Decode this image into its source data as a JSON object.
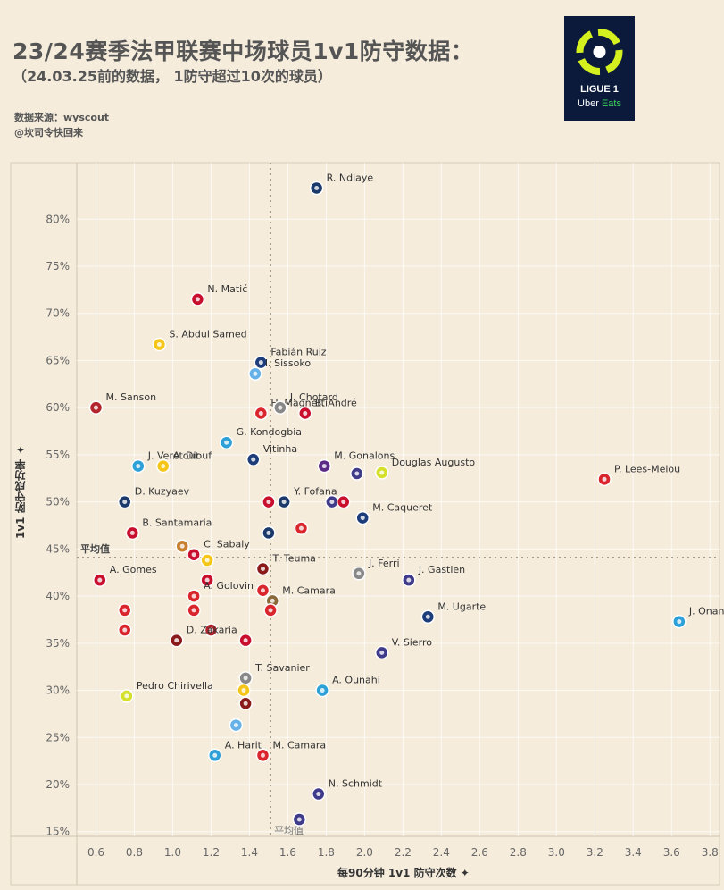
{
  "header": {
    "title": "23/24赛季法甲联赛中场球员1v1防守数据：",
    "subtitle": "（24.03.25前的数据，                1防守超过10次的球员）",
    "source": "数据来源：wyscout",
    "author": "@坎司令快回来"
  },
  "logo": {
    "line1": "LIGUE 1",
    "line2a": "Uber ",
    "line2b": "Eats"
  },
  "axis_labels": {
    "y": "1v1 防守成功率 ✦",
    "x": "每90分钟 1v1 防守次数 ✦"
  },
  "chart_data": {
    "type": "scatter",
    "title": "23/24赛季法甲联赛中场球员1v1防守数据：",
    "xlabel": "每90分钟 1v1 防守次数",
    "ylabel": "1v1 防守成功率",
    "xlim": [
      0.5,
      3.85
    ],
    "ylim": [
      14.5,
      86
    ],
    "x_ticks": [
      "0.6",
      "0.8",
      "1.0",
      "1.2",
      "1.4",
      "1.6",
      "1.8",
      "2.0",
      "2.2",
      "2.4",
      "2.6",
      "2.8",
      "3.0",
      "3.2",
      "3.4",
      "3.6",
      "3.8"
    ],
    "x_tick_values": [
      0.6,
      0.8,
      1.0,
      1.2,
      1.4,
      1.6,
      1.8,
      2.0,
      2.2,
      2.4,
      2.6,
      2.8,
      3.0,
      3.2,
      3.4,
      3.6,
      3.8
    ],
    "y_ticks": [
      "15%",
      "20%",
      "25%",
      "30%",
      "35%",
      "40%",
      "45%",
      "50%",
      "55%",
      "60%",
      "65%",
      "70%",
      "75%",
      "80%"
    ],
    "y_tick_values": [
      15,
      20,
      25,
      30,
      35,
      40,
      45,
      50,
      55,
      60,
      65,
      70,
      75,
      80
    ],
    "avg_x": 1.51,
    "avg_y": 44.1,
    "avg_label": "平均值",
    "grid": true,
    "points": [
      {
        "name": "R. Ndiaye",
        "x": 1.75,
        "y": 83.3,
        "color": "#1b3a6b"
      },
      {
        "name": "N. Matić",
        "x": 1.13,
        "y": 71.5,
        "color": "#c8102e"
      },
      {
        "name": "S. Abdul Samed",
        "x": 0.93,
        "y": 66.7,
        "color": "#f5c518"
      },
      {
        "name": "Fabián Ruiz",
        "x": 1.46,
        "y": 64.8,
        "color": "#1d3c7a"
      },
      {
        "name": "I. Sissoko",
        "x": 1.43,
        "y": 63.6,
        "color": "#66b2e8"
      },
      {
        "name": "M. Sanson",
        "x": 0.6,
        "y": 60.0,
        "color": "#b3262d"
      },
      {
        "name": "H. Magnetti",
        "x": 1.46,
        "y": 59.4,
        "color": "#d9262d"
      },
      {
        "name": "J. Chotard",
        "x": 1.56,
        "y": 60.0,
        "color": "#888888"
      },
      {
        "name": "B. André",
        "x": 1.69,
        "y": 59.4,
        "color": "#c8102e"
      },
      {
        "name": "G. Kondogbia",
        "x": 1.28,
        "y": 56.3,
        "color": "#2ea0d8"
      },
      {
        "name": "A. Diouf",
        "x": 0.95,
        "y": 53.8,
        "color": "#f5c518"
      },
      {
        "name": "Vitinha",
        "x": 1.42,
        "y": 54.5,
        "color": "#1d3c7a"
      },
      {
        "name": "M. Gonalons",
        "x": 1.79,
        "y": 53.8,
        "color": "#5b2a86"
      },
      {
        "name": "",
        "x": 1.96,
        "y": 53.0,
        "color": "#3f3a8a"
      },
      {
        "name": "Douglas Augusto",
        "x": 2.09,
        "y": 53.1,
        "color": "#d4e02a"
      },
      {
        "name": "P. Lees-Melou",
        "x": 3.25,
        "y": 52.4,
        "color": "#d9262d"
      },
      {
        "name": "J. Veretout",
        "x": 0.82,
        "y": 53.8,
        "color": "#2ea0d8"
      },
      {
        "name": "D. Kuzyaev",
        "x": 0.75,
        "y": 50.0,
        "color": "#1b3a6b"
      },
      {
        "name": "Y. Fofana",
        "x": 1.58,
        "y": 50.0,
        "color": "#1b3a6b"
      },
      {
        "name": "",
        "x": 1.5,
        "y": 50.0,
        "color": "#c8102e"
      },
      {
        "name": "",
        "x": 1.83,
        "y": 50.0,
        "color": "#3f3a8a"
      },
      {
        "name": "",
        "x": 1.89,
        "y": 50.0,
        "color": "#c8102e"
      },
      {
        "name": "M. Caqueret",
        "x": 1.99,
        "y": 48.3,
        "color": "#1d3c7a"
      },
      {
        "name": "",
        "x": 1.67,
        "y": 47.2,
        "color": "#d9262d"
      },
      {
        "name": "B. Santamaria",
        "x": 0.79,
        "y": 46.7,
        "color": "#c8102e"
      },
      {
        "name": "",
        "x": 1.5,
        "y": 46.7,
        "color": "#1b3a6b"
      },
      {
        "name": "",
        "x": 1.05,
        "y": 45.3,
        "color": "#c8802e"
      },
      {
        "name": "C. Sabaly",
        "x": 1.11,
        "y": 44.4,
        "color": "#c8102e"
      },
      {
        "name": "",
        "x": 1.18,
        "y": 43.8,
        "color": "#f5c518"
      },
      {
        "name": "A. Gomes",
        "x": 0.62,
        "y": 41.7,
        "color": "#c8102e"
      },
      {
        "name": "T. Teuma",
        "x": 1.47,
        "y": 42.9,
        "color": "#8a1a1a"
      },
      {
        "name": "J. Ferri",
        "x": 1.97,
        "y": 42.4,
        "color": "#888888"
      },
      {
        "name": "J. Gastien",
        "x": 2.23,
        "y": 41.7,
        "color": "#3f3a8a"
      },
      {
        "name": "",
        "x": 1.18,
        "y": 41.7,
        "color": "#c8102e"
      },
      {
        "name": "A. Golovin",
        "x": 1.11,
        "y": 40.0,
        "color": "#d9262d"
      },
      {
        "name": "",
        "x": 1.47,
        "y": 40.6,
        "color": "#d9262d"
      },
      {
        "name": "M. Camara",
        "x": 1.52,
        "y": 39.5,
        "color": "#8a6a3a"
      },
      {
        "name": "",
        "x": 1.51,
        "y": 38.5,
        "color": "#d9262d"
      },
      {
        "name": "",
        "x": 0.75,
        "y": 38.5,
        "color": "#d9262d"
      },
      {
        "name": "",
        "x": 1.11,
        "y": 38.5,
        "color": "#d9262d"
      },
      {
        "name": "J. Onana",
        "x": 3.64,
        "y": 37.3,
        "color": "#2ea0d8"
      },
      {
        "name": "M. Ugarte",
        "x": 2.33,
        "y": 37.8,
        "color": "#1d3c7a"
      },
      {
        "name": "",
        "x": 0.75,
        "y": 36.4,
        "color": "#d9262d"
      },
      {
        "name": "",
        "x": 1.2,
        "y": 36.4,
        "color": "#b3262d"
      },
      {
        "name": "D. Zakaria",
        "x": 1.02,
        "y": 35.3,
        "color": "#8a1a1a"
      },
      {
        "name": "",
        "x": 1.38,
        "y": 35.3,
        "color": "#c8102e"
      },
      {
        "name": "V. Sierro",
        "x": 2.09,
        "y": 34.0,
        "color": "#3f3a8a"
      },
      {
        "name": "T. Savanier",
        "x": 1.38,
        "y": 31.3,
        "color": "#888888"
      },
      {
        "name": "",
        "x": 1.37,
        "y": 30.0,
        "color": "#f5c518"
      },
      {
        "name": "Pedro Chirivella",
        "x": 0.76,
        "y": 29.4,
        "color": "#d4e02a"
      },
      {
        "name": "A. Ounahi",
        "x": 1.78,
        "y": 30.0,
        "color": "#2ea0d8"
      },
      {
        "name": "",
        "x": 1.38,
        "y": 28.6,
        "color": "#8a1a1a"
      },
      {
        "name": "",
        "x": 1.33,
        "y": 26.3,
        "color": "#66b2e8"
      },
      {
        "name": "M. Camara",
        "x": 1.47,
        "y": 23.1,
        "color": "#d9262d"
      },
      {
        "name": "A. Harit",
        "x": 1.22,
        "y": 23.1,
        "color": "#2ea0d8"
      },
      {
        "name": "N. Schmidt",
        "x": 1.76,
        "y": 19.0,
        "color": "#3f3a8a"
      },
      {
        "name": "",
        "x": 1.66,
        "y": 16.3,
        "color": "#3f3a8a"
      }
    ]
  }
}
